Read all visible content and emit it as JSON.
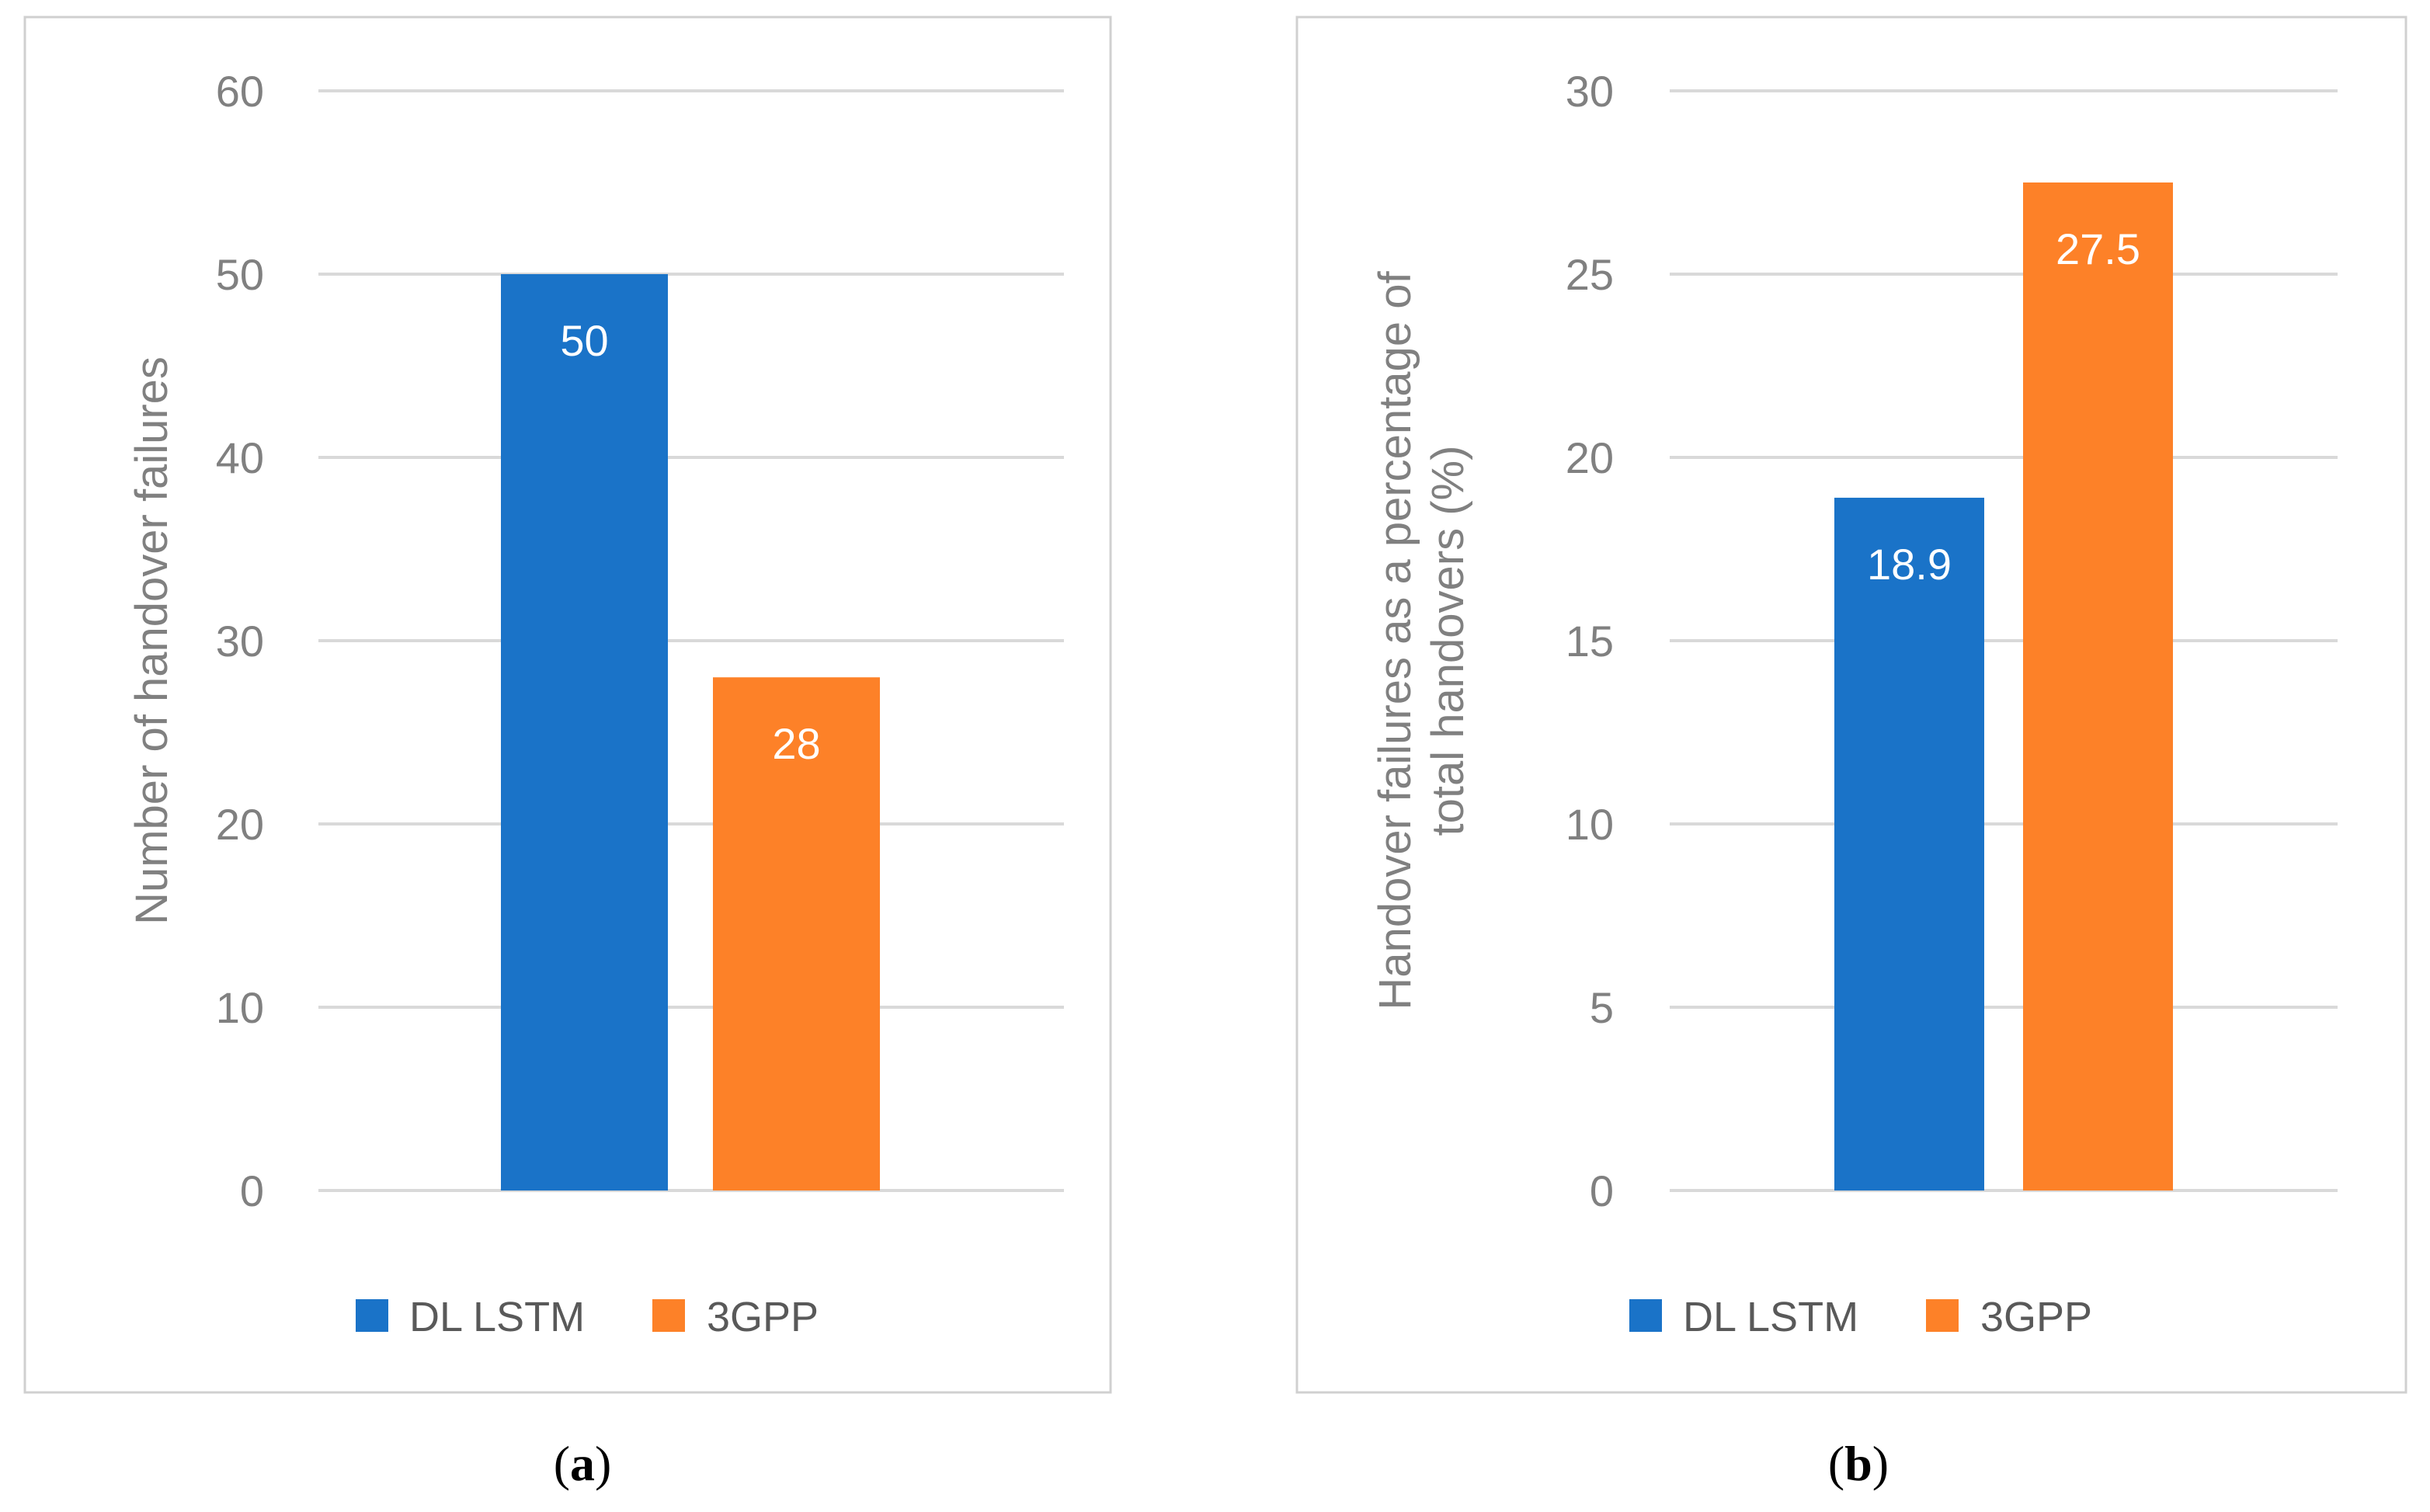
{
  "colors": {
    "dl_lstm": "#1a73c8",
    "3gpp": "#fd8128",
    "grid": "#d9d9d9",
    "axis_text": "#808080",
    "bar_label": "#ffffff",
    "legend_text": "#595959",
    "frame": "#d0d0d0"
  },
  "captions": {
    "a": {
      "open": "(",
      "letter": "a",
      "close": ")"
    },
    "b": {
      "open": "(",
      "letter": "b",
      "close": ")"
    }
  },
  "chart_data": [
    {
      "panel": "a",
      "type": "bar",
      "title": "",
      "xlabel": "",
      "ylabel": "Number of handover failures",
      "ylim": [
        0,
        60
      ],
      "yticks": [
        0,
        10,
        20,
        30,
        40,
        50,
        60
      ],
      "grid": true,
      "legend_position": "bottom",
      "categories": [
        ""
      ],
      "series": [
        {
          "name": "DL LSTM",
          "values": [
            50
          ],
          "labels": [
            "50"
          ],
          "color": "#1a73c8"
        },
        {
          "name": "3GPP",
          "values": [
            28
          ],
          "labels": [
            "28"
          ],
          "color": "#fd8128"
        }
      ]
    },
    {
      "panel": "b",
      "type": "bar",
      "title": "",
      "xlabel": "",
      "ylabel": [
        "Handover failures as a percentage of",
        "total handovers (%)"
      ],
      "ylim": [
        0,
        30
      ],
      "yticks": [
        0,
        5,
        10,
        15,
        20,
        25,
        30
      ],
      "grid": true,
      "legend_position": "bottom",
      "categories": [
        ""
      ],
      "series": [
        {
          "name": "DL LSTM",
          "values": [
            18.9
          ],
          "labels": [
            "18.9"
          ],
          "color": "#1a73c8"
        },
        {
          "name": "3GPP",
          "values": [
            27.5
          ],
          "labels": [
            "27.5"
          ],
          "color": "#fd8128"
        }
      ]
    }
  ]
}
